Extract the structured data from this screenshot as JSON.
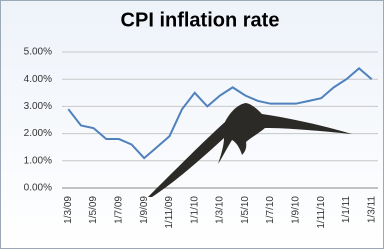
{
  "chart_data": {
    "type": "line",
    "title": "CPI inflation rate",
    "categories": [
      "1/3/09",
      null,
      "1/5/09",
      null,
      "1/7/09",
      null,
      "1/9/09",
      null,
      "1/11/09",
      null,
      "1/1/10",
      null,
      "1/3/10",
      null,
      "1/5/10",
      null,
      "1/7/10",
      null,
      "1/9/10",
      null,
      "1/11/10",
      null,
      "1/1/11",
      null,
      "1/3/11"
    ],
    "series": [
      {
        "name": "CPI inflation rate",
        "color": "#4f81bd",
        "values": [
          2.9,
          2.3,
          2.2,
          1.8,
          1.8,
          1.6,
          1.1,
          1.5,
          1.9,
          2.9,
          3.5,
          3.0,
          3.4,
          3.7,
          3.4,
          3.2,
          3.1,
          3.1,
          3.1,
          3.2,
          3.3,
          3.7,
          4.0,
          4.4,
          4.0
        ]
      }
    ],
    "ylim": [
      0,
      5
    ],
    "yticks": [
      {
        "value": 0,
        "label": "0.00%"
      },
      {
        "value": 1,
        "label": "1.00%"
      },
      {
        "value": 2,
        "label": "2.00%"
      },
      {
        "value": 3,
        "label": "3.00%"
      },
      {
        "value": 4,
        "label": "4.00%"
      },
      {
        "value": 5,
        "label": "5.00%"
      }
    ],
    "grid": true
  }
}
